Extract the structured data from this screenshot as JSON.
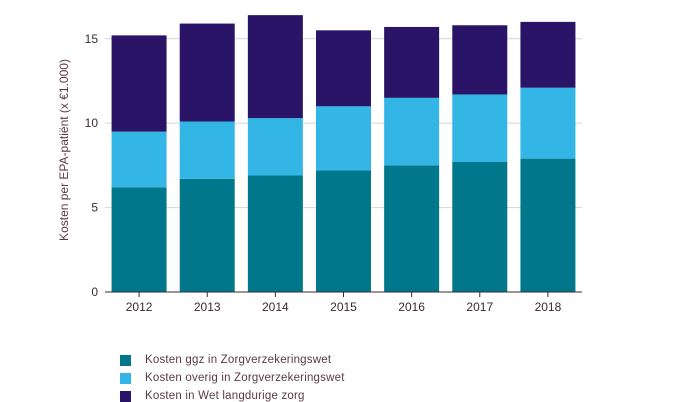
{
  "chart_data": {
    "type": "bar",
    "stacked": true,
    "categories": [
      "2012",
      "2013",
      "2014",
      "2015",
      "2016",
      "2017",
      "2018"
    ],
    "series": [
      {
        "name": "Kosten ggz in Zorgverzekeringswet",
        "color": "#00778a",
        "values": [
          6.2,
          6.7,
          6.9,
          7.2,
          7.5,
          7.7,
          7.9
        ]
      },
      {
        "name": "Kosten overig in Zorgverzekeringswet",
        "color": "#33b5e5",
        "values": [
          3.3,
          3.4,
          3.4,
          3.8,
          4.0,
          4.0,
          4.2
        ]
      },
      {
        "name": "Kosten in Wet langdurige zorg",
        "color": "#2a1468",
        "values": [
          5.7,
          5.8,
          6.1,
          4.5,
          4.2,
          4.1,
          3.9
        ]
      }
    ],
    "title": "",
    "xlabel": "",
    "ylabel": "Kosten per EPA-patiënt (x €1.000)",
    "ylim": [
      0,
      17
    ],
    "yticks": [
      0,
      5,
      10,
      15
    ],
    "grid": "horizontal",
    "legend": "bottom-left"
  }
}
